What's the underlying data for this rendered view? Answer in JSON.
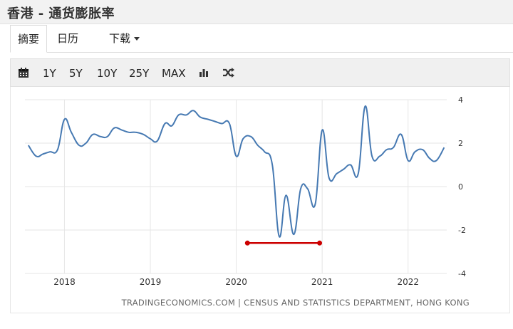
{
  "page": {
    "title": "香港 - 通货膨胀率"
  },
  "tabs": [
    {
      "label": "摘要"
    },
    {
      "label": "日历"
    },
    {
      "label": "下载"
    }
  ],
  "toolbar": {
    "ranges": [
      "1Y",
      "5Y",
      "10Y",
      "25Y",
      "MAX"
    ],
    "icons": [
      "calendar-icon",
      "bar-chart-icon",
      "shuffle-icon"
    ]
  },
  "source": "TRADINGECONOMICS.COM | CENSUS AND STATISTICS DEPARTMENT, HONG KONG",
  "colors": {
    "line": "#4679b2",
    "annotation": "#cc0000",
    "grid": "#e6e6e6"
  },
  "chart_data": {
    "type": "line",
    "title": "",
    "xlabel": "",
    "ylabel": "",
    "ylim": [
      -4,
      4
    ],
    "yticks": [
      4,
      2,
      0,
      -2,
      -4
    ],
    "xlim": [
      2017.54,
      2022.45
    ],
    "xticks": [
      {
        "value": 2018,
        "label": "2018"
      },
      {
        "value": 2019,
        "label": "2019"
      },
      {
        "value": 2020,
        "label": "2020"
      },
      {
        "value": 2021,
        "label": "2021"
      },
      {
        "value": 2022,
        "label": "2022"
      }
    ],
    "grid": true,
    "series": [
      {
        "values": [
          [
            2017.58,
            1.9
          ],
          [
            2017.67,
            1.4
          ],
          [
            2017.75,
            1.5
          ],
          [
            2017.83,
            1.6
          ],
          [
            2017.92,
            1.7
          ],
          [
            2018.0,
            3.1
          ],
          [
            2018.08,
            2.5
          ],
          [
            2018.17,
            1.9
          ],
          [
            2018.25,
            2.0
          ],
          [
            2018.33,
            2.4
          ],
          [
            2018.42,
            2.3
          ],
          [
            2018.5,
            2.3
          ],
          [
            2018.58,
            2.7
          ],
          [
            2018.67,
            2.6
          ],
          [
            2018.75,
            2.5
          ],
          [
            2018.83,
            2.5
          ],
          [
            2018.92,
            2.4
          ],
          [
            2019.0,
            2.2
          ],
          [
            2019.08,
            2.1
          ],
          [
            2019.17,
            2.9
          ],
          [
            2019.25,
            2.8
          ],
          [
            2019.33,
            3.3
          ],
          [
            2019.42,
            3.3
          ],
          [
            2019.5,
            3.5
          ],
          [
            2019.58,
            3.2
          ],
          [
            2019.67,
            3.1
          ],
          [
            2019.75,
            3.0
          ],
          [
            2019.83,
            2.9
          ],
          [
            2019.92,
            2.9
          ],
          [
            2020.0,
            1.4
          ],
          [
            2020.08,
            2.2
          ],
          [
            2020.17,
            2.3
          ],
          [
            2020.25,
            1.9
          ],
          [
            2020.33,
            1.6
          ],
          [
            2020.42,
            1.0
          ],
          [
            2020.5,
            -2.3
          ],
          [
            2020.58,
            -0.4
          ],
          [
            2020.67,
            -2.2
          ],
          [
            2020.75,
            -0.1
          ],
          [
            2020.83,
            -0.1
          ],
          [
            2020.92,
            -0.8
          ],
          [
            2021.0,
            2.6
          ],
          [
            2021.08,
            0.4
          ],
          [
            2021.17,
            0.6
          ],
          [
            2021.25,
            0.8
          ],
          [
            2021.33,
            1.0
          ],
          [
            2021.42,
            0.6
          ],
          [
            2021.5,
            3.7
          ],
          [
            2021.58,
            1.4
          ],
          [
            2021.67,
            1.4
          ],
          [
            2021.75,
            1.7
          ],
          [
            2021.83,
            1.8
          ],
          [
            2021.92,
            2.4
          ],
          [
            2022.0,
            1.2
          ],
          [
            2022.08,
            1.6
          ],
          [
            2022.17,
            1.7
          ],
          [
            2022.25,
            1.3
          ],
          [
            2022.33,
            1.2
          ],
          [
            2022.42,
            1.8
          ]
        ]
      }
    ],
    "annotation": {
      "type": "horizontal-segment",
      "x_start": 2020.13,
      "x_end": 2020.97,
      "y": -2.6
    }
  }
}
